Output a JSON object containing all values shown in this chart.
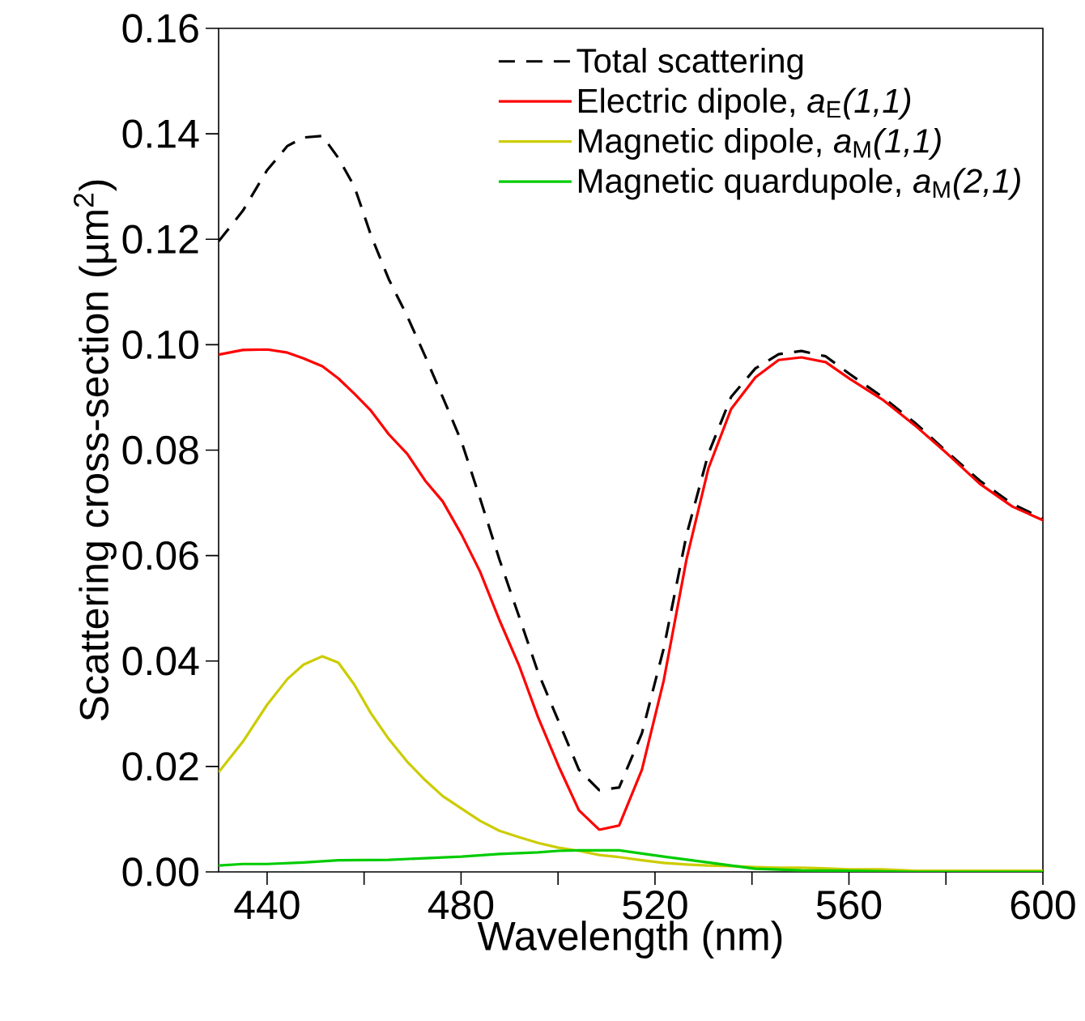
{
  "chart_data": {
    "type": "line",
    "xlabel": "Wavelength (nm)",
    "ylabel": "Scattering cross-section (µm$^{2}$)",
    "xlim": [
      430,
      600
    ],
    "ylim": [
      0,
      0.16
    ],
    "xticks": [
      440,
      {
        "value": 460,
        "label": null
      },
      480,
      {
        "value": 500,
        "label": null
      },
      520,
      {
        "value": 540,
        "label": null
      },
      560,
      {
        "value": 580,
        "label": null
      },
      600
    ],
    "yticks": [
      {
        "value": 0,
        "label": "0.00"
      },
      {
        "value": 0.02,
        "label": "0.02"
      },
      {
        "value": 0.04,
        "label": "0.04"
      },
      {
        "value": 0.06,
        "label": "0.06"
      },
      {
        "value": 0.08,
        "label": "0.08"
      },
      {
        "value": 0.1,
        "label": "0.10"
      },
      {
        "value": 0.12,
        "label": "0.12"
      },
      {
        "value": 0.14,
        "label": "0.14"
      },
      {
        "value": 0.16,
        "label": "0.16"
      }
    ],
    "grid": false,
    "legend": "top right",
    "marker": "none",
    "series": [
      {
        "name": "Total scattering",
        "color": "#000000",
        "line_style": "dashed",
        "x": [
          430,
          435,
          440,
          444.2,
          447.5,
          451.4,
          454.7,
          458,
          461.4,
          465.1,
          468.9,
          472.6,
          476.2,
          480.1,
          483.9,
          487.9,
          491.9,
          495.9,
          500.1,
          504.3,
          508.5,
          512.6,
          517.3,
          521.8,
          526.5,
          531,
          535.7,
          540.7,
          545.5,
          550.2,
          555.2,
          560.2,
          566.9,
          573.6,
          580.3,
          587,
          593.7,
          600
        ],
        "values": [
          0.1196,
          0.1254,
          0.1331,
          0.1377,
          0.1393,
          0.1396,
          0.1354,
          0.13,
          0.1208,
          0.1124,
          0.1054,
          0.0978,
          0.0901,
          0.0816,
          0.0709,
          0.0593,
          0.0486,
          0.0378,
          0.0286,
          0.0194,
          0.0155,
          0.016,
          0.0263,
          0.0424,
          0.0639,
          0.0793,
          0.0901,
          0.0955,
          0.0982,
          0.0988,
          0.0978,
          0.0944,
          0.0901,
          0.0852,
          0.0796,
          0.0742,
          0.0698,
          0.067
        ]
      },
      {
        "name": "Electric dipole, *a*$_{E}$*(1,1)*",
        "color": "#ff0000",
        "line_style": "solid",
        "x": [
          430,
          435,
          440,
          444.2,
          447.5,
          451.4,
          454.7,
          458,
          461.4,
          465.1,
          468.9,
          472.6,
          476.2,
          480.1,
          483.9,
          487.9,
          491.9,
          495.9,
          500.1,
          504.3,
          508.5,
          512.6,
          517.3,
          521.8,
          526.5,
          531,
          535.7,
          540.7,
          545.5,
          550.2,
          555.2,
          560.2,
          566.9,
          573.6,
          580.3,
          587,
          593.7,
          600
        ],
        "values": [
          0.0981,
          0.099,
          0.0991,
          0.0985,
          0.0974,
          0.0959,
          0.0936,
          0.0907,
          0.0875,
          0.083,
          0.0793,
          0.0742,
          0.0703,
          0.064,
          0.057,
          0.0478,
          0.0393,
          0.0293,
          0.0201,
          0.0117,
          0.008,
          0.0088,
          0.0194,
          0.0363,
          0.0593,
          0.0765,
          0.0878,
          0.0938,
          0.0971,
          0.0976,
          0.0967,
          0.0935,
          0.0896,
          0.0847,
          0.0793,
          0.0736,
          0.0693,
          0.0667
        ]
      },
      {
        "name": "Magnetic dipole, *a*$_{M}$*(1,1)*",
        "color": "#cccc00",
        "line_style": "solid",
        "x": [
          430,
          435,
          440,
          444.2,
          447.5,
          451.4,
          454.7,
          458,
          461.4,
          465.1,
          468.9,
          472.6,
          476.2,
          480.1,
          483.9,
          487.9,
          491.9,
          495.9,
          500.1,
          504.3,
          508.5,
          512.6,
          517.3,
          521.8,
          526.5,
          531,
          535.7,
          540.7,
          545.5,
          550.2,
          560.2,
          566.9,
          573.6,
          587,
          600
        ],
        "values": [
          0.0189,
          0.0247,
          0.0317,
          0.0366,
          0.0393,
          0.0409,
          0.0397,
          0.0355,
          0.0301,
          0.0252,
          0.0209,
          0.0174,
          0.0144,
          0.012,
          0.0097,
          0.0078,
          0.0066,
          0.0055,
          0.0046,
          0.004,
          0.0032,
          0.0028,
          0.0022,
          0.0017,
          0.0014,
          0.0012,
          0.0011,
          0.0009,
          0.0008,
          0.0008,
          0.0005,
          0.0005,
          0.0002,
          0.0002,
          0.0002
        ]
      },
      {
        "name": "Magnetic quardupole, *a*$_{M}$*(2,1)*",
        "color": "#00cc00",
        "line_style": "solid",
        "x": [
          430,
          435,
          440,
          447.5,
          454.7,
          465.1,
          472.6,
          480.1,
          487.9,
          495.9,
          500.1,
          504.3,
          512.6,
          521.8,
          531,
          540.7,
          550.2,
          560.2,
          573.6,
          600
        ],
        "values": [
          0.0012,
          0.0015,
          0.0015,
          0.0018,
          0.0022,
          0.0023,
          0.0026,
          0.0029,
          0.0034,
          0.0037,
          0.004,
          0.0041,
          0.0041,
          0.0029,
          0.0018,
          0.0006,
          0.0003,
          0.0002,
          0,
          0
        ]
      }
    ]
  }
}
